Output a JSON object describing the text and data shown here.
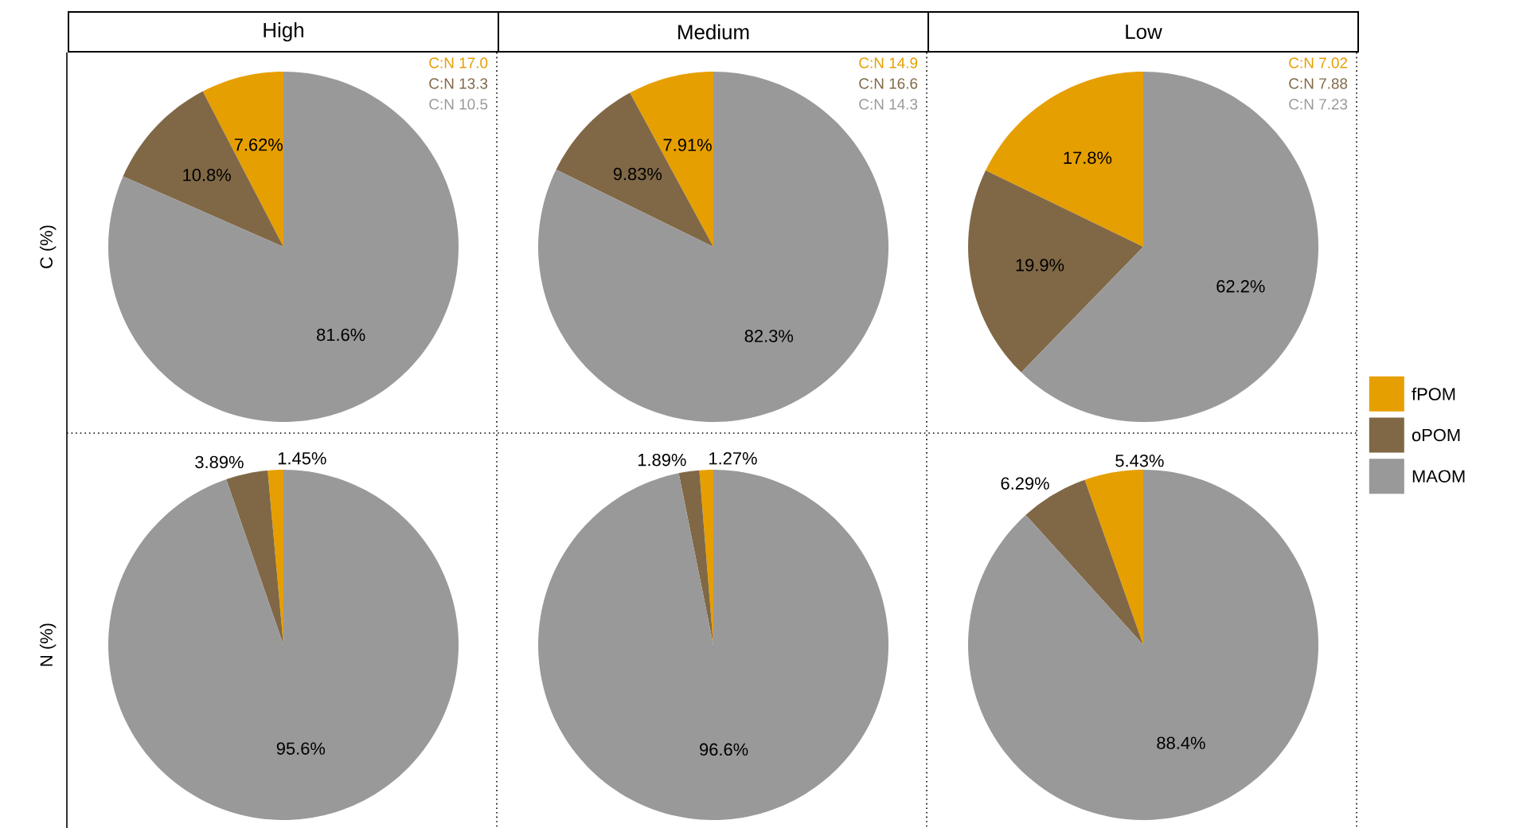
{
  "chart_data": [
    {
      "type": "pie",
      "title": "High",
      "ylabel": "C (%)",
      "categories": [
        null,
        null,
        null
      ],
      "values": [
        7.62,
        10.8,
        81.6
      ],
      "value_labels": [
        "7.62%",
        "10.8%",
        "81.6%"
      ],
      "colors": [
        "#e69f00",
        "#806846",
        "#999999"
      ],
      "annotations": [
        "C:N 17.0",
        "C:N 13.3",
        "C:N 10.5"
      ]
    },
    {
      "type": "pie",
      "title": "Medium",
      "categories": [
        null,
        null,
        null
      ],
      "values": [
        7.91,
        9.83,
        82.3
      ],
      "value_labels": [
        "7.91%",
        "9.83%",
        "82.3%"
      ],
      "colors": [
        "#e69f00",
        "#806846",
        "#999999"
      ],
      "annotations": [
        "C:N 14.9",
        "C:N 16.6",
        "C:N 14.3"
      ]
    },
    {
      "type": "pie",
      "title": "Low",
      "categories": [
        "fPOM",
        "oPOM",
        "MAOM"
      ],
      "values": [
        17.8,
        19.9,
        62.2
      ],
      "value_labels": [
        "17.8%",
        "19.9%",
        "62.2%"
      ],
      "colors": [
        "#e69f00",
        "#806846",
        "#999999"
      ],
      "annotations": [
        "C:N 7.02",
        "C:N 7.88",
        "C:N 7.23"
      ],
      "legend": "right"
    },
    {
      "type": "pie",
      "ylabel": "N (%)",
      "categories": [
        null,
        null,
        null
      ],
      "values": [
        1.45,
        3.89,
        95.6
      ],
      "value_labels": [
        "1.45%",
        "3.89%",
        "95.6%"
      ],
      "colors": [
        "#e69f00",
        "#806846",
        "#999999"
      ]
    },
    {
      "type": "pie",
      "categories": [
        null,
        null,
        null
      ],
      "values": [
        1.27,
        1.89,
        96.6
      ],
      "value_labels": [
        "1.27%",
        "1.89%",
        "96.6%"
      ],
      "colors": [
        "#e69f00",
        "#806846",
        "#999999"
      ]
    },
    {
      "type": "pie",
      "categories": [
        null,
        null,
        null
      ],
      "values": [
        5.43,
        6.29,
        88.4
      ],
      "value_labels": [
        "5.43%",
        "6.29%",
        "88.4%"
      ],
      "colors": [
        "#e69f00",
        "#806846",
        "#999999"
      ]
    }
  ]
}
